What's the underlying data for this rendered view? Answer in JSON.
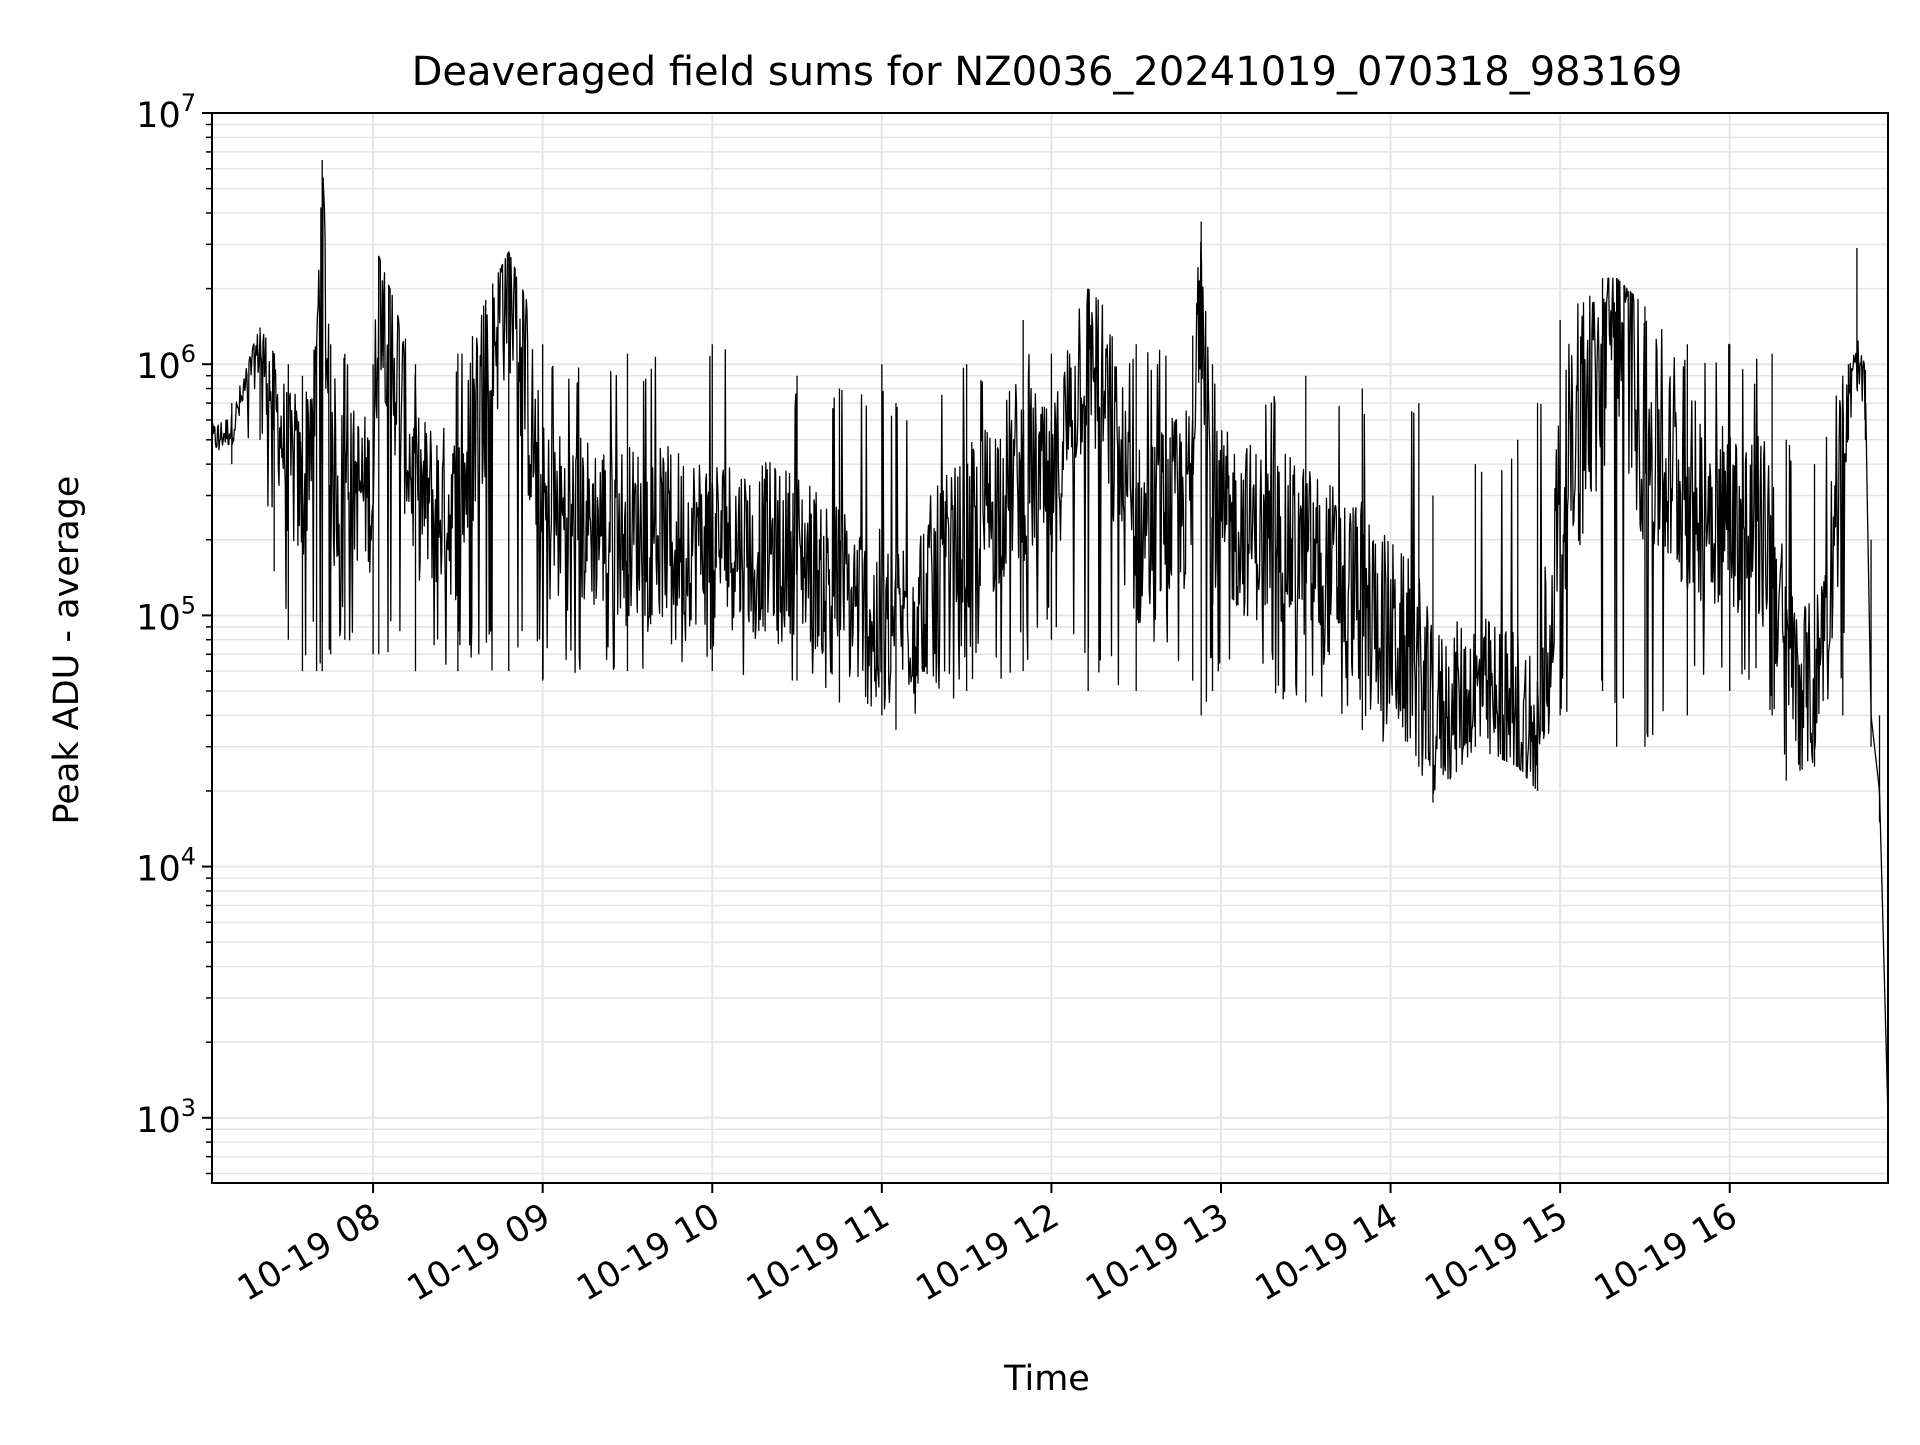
{
  "chart_data": {
    "type": "line",
    "title": "Deaveraged field sums for NZ0036_20241019_070318_983169",
    "xlabel": "Time",
    "ylabel": "Peak ADU - average",
    "yscale": "log",
    "xlim": [
      "2024-10-19 07:03",
      "2024-10-19 16:56"
    ],
    "ylim": [
      550,
      10000000
    ],
    "grid": true,
    "x_ticks": [
      {
        "value": "2024-10-19 08:00",
        "label": "10-19 08"
      },
      {
        "value": "2024-10-19 09:00",
        "label": "10-19 09"
      },
      {
        "value": "2024-10-19 10:00",
        "label": "10-19 10"
      },
      {
        "value": "2024-10-19 11:00",
        "label": "10-19 11"
      },
      {
        "value": "2024-10-19 12:00",
        "label": "10-19 12"
      },
      {
        "value": "2024-10-19 13:00",
        "label": "10-19 13"
      },
      {
        "value": "2024-10-19 14:00",
        "label": "10-19 14"
      },
      {
        "value": "2024-10-19 15:00",
        "label": "10-19 15"
      },
      {
        "value": "2024-10-19 16:00",
        "label": "10-19 16"
      }
    ],
    "y_ticks": [
      {
        "value": 1000,
        "base": "10",
        "exp": "3"
      },
      {
        "value": 10000,
        "base": "10",
        "exp": "4"
      },
      {
        "value": 100000,
        "base": "10",
        "exp": "5"
      },
      {
        "value": 1000000,
        "base": "10",
        "exp": "6"
      },
      {
        "value": 10000000,
        "base": "10",
        "exp": "7"
      }
    ],
    "line_color": "#000000",
    "grid_color": "#e5e5e5",
    "series": [
      {
        "x": [
          "2024-10-19 07:03",
          "2024-10-19 07:10",
          "2024-10-19 07:20",
          "2024-10-19 07:25",
          "2024-10-19 07:30",
          "2024-10-19 07:35",
          "2024-10-19 07:40",
          "2024-10-19 07:42",
          "2024-10-19 07:45",
          "2024-10-19 07:50",
          "2024-10-19 08:00",
          "2024-10-19 08:02",
          "2024-10-19 08:15",
          "2024-10-19 08:30",
          "2024-10-19 08:48",
          "2024-10-19 09:00",
          "2024-10-19 09:30",
          "2024-10-19 10:00",
          "2024-10-19 10:30",
          "2024-10-19 10:45",
          "2024-10-19 11:00",
          "2024-10-19 11:05",
          "2024-10-19 11:30",
          "2024-10-19 11:50",
          "2024-10-19 12:00",
          "2024-10-19 12:13",
          "2024-10-19 12:30",
          "2024-10-19 12:50",
          "2024-10-19 12:53",
          "2024-10-19 12:57",
          "2024-10-19 13:30",
          "2024-10-19 13:50",
          "2024-10-19 14:10",
          "2024-10-19 14:15",
          "2024-10-19 14:30",
          "2024-10-19 14:45",
          "2024-10-19 14:52",
          "2024-10-19 15:00",
          "2024-10-19 15:15",
          "2024-10-19 15:20",
          "2024-10-19 15:30",
          "2024-10-19 15:45",
          "2024-10-19 16:00",
          "2024-10-19 16:15",
          "2024-10-19 16:20",
          "2024-10-19 16:30",
          "2024-10-19 16:40",
          "2024-10-19 16:42",
          "2024-10-19 16:45",
          "2024-10-19 16:48",
          "2024-10-19 16:50",
          "2024-10-19 16:53",
          "2024-10-19 16:56"
        ],
        "y": [
          500000,
          550000,
          1200000,
          700000,
          400000,
          300000,
          1000000,
          6500000,
          300000,
          350000,
          300000,
          2700000,
          300000,
          250000,
          2800000,
          250000,
          220000,
          200000,
          180000,
          130000,
          90000,
          90000,
          200000,
          400000,
          300000,
          1400000,
          200000,
          300000,
          3700000,
          250000,
          180000,
          120000,
          60000,
          40000,
          50000,
          40000,
          30000,
          300000,
          900000,
          2100000,
          500000,
          300000,
          250000,
          200000,
          60000,
          50000,
          400000,
          800000,
          950000,
          800000,
          40000,
          20000,
          1000
        ],
        "envelope_low": [
          350000,
          400000,
          500000,
          150000,
          80000,
          60000,
          60000,
          60000,
          70000,
          80000,
          70000,
          70000,
          60000,
          60000,
          60000,
          55000,
          60000,
          60000,
          55000,
          45000,
          40000,
          35000,
          50000,
          60000,
          80000,
          50000,
          50000,
          55000,
          40000,
          50000,
          45000,
          35000,
          25000,
          18000,
          30000,
          25000,
          20000,
          40000,
          50000,
          30000,
          30000,
          40000,
          50000,
          40000,
          22000,
          25000,
          40000,
          500000,
          800000,
          500000,
          30000,
          15000,
          1000
        ],
        "envelope_high": [
          600000,
          700000,
          1400000,
          1100000,
          1000000,
          900000,
          1200000,
          6500000,
          1200000,
          1100000,
          1000000,
          2700000,
          1000000,
          1100000,
          2800000,
          1200000,
          1100000,
          1200000,
          900000,
          800000,
          1000000,
          700000,
          1000000,
          1500000,
          1100000,
          2000000,
          1200000,
          1300000,
          3700000,
          1000000,
          900000,
          800000,
          700000,
          300000,
          400000,
          500000,
          700000,
          1500000,
          2200000,
          2200000,
          1700000,
          1200000,
          1200000,
          1100000,
          500000,
          400000,
          900000,
          1000000,
          2900000,
          950000,
          200000,
          40000,
          1000
        ]
      }
    ]
  }
}
